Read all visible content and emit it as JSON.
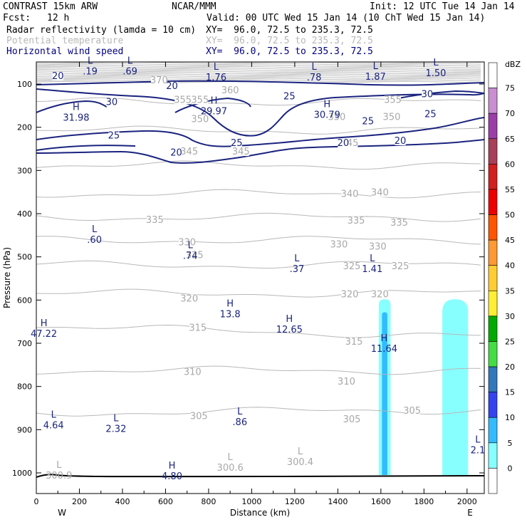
{
  "header": {
    "model": "CONTRAST 15km ARW",
    "center": "NCAR/MMM",
    "init": "Init: 12 UTC Tue 14 Jan 14",
    "fcst_label": "Fcst:",
    "fcst_value": "12 h",
    "valid": "Valid: 00 UTC Wed 15 Jan 14 (10 ChT Wed 15 Jan 14)",
    "fields": [
      {
        "name": "Radar reflectivity (lamda = 10 cm)",
        "xy": "XY=  96.0, 72.5 to 235.3, 72.5",
        "color": "#000000"
      },
      {
        "name": "Potential temperature",
        "xy": "XY=  96.0, 72.5 to 235.3, 72.5",
        "color": "#b8b8b8"
      },
      {
        "name": "Horizontal wind speed",
        "xy": "XY=  96.0, 72.5 to 235.3, 72.5",
        "color": "#000080"
      }
    ]
  },
  "chart_data": {
    "type": "cross-section",
    "xlabel": "Distance (km)",
    "ylabel": "Pressure (hPa)",
    "xlim": [
      0,
      2080
    ],
    "ylim_pressure": [
      1050,
      60
    ],
    "x_ticks": [
      "0",
      "200",
      "400",
      "600",
      "800",
      "1000",
      "1200",
      "1400",
      "1600",
      "1800",
      "2000"
    ],
    "y_ticks": [
      "100",
      "200",
      "300",
      "400",
      "500",
      "600",
      "700",
      "800",
      "900",
      "1000"
    ],
    "x_end_labels": {
      "left": "W",
      "right": "E"
    },
    "colorbar": {
      "unit": "dBZ",
      "levels": [
        "75",
        "70",
        "65",
        "60",
        "55",
        "50",
        "45",
        "40",
        "35",
        "30",
        "25",
        "20",
        "15",
        "10",
        "5",
        "0"
      ],
      "colors": [
        "#ffffff",
        "#c98fd0",
        "#9a3fa8",
        "#a8405a",
        "#d02020",
        "#ee0000",
        "#ff5500",
        "#ff9933",
        "#ffcc33",
        "#ffee33",
        "#00aa00",
        "#44dd44",
        "#3377bb",
        "#3344ee",
        "#33bbff",
        "#88ffff",
        "#ffffff"
      ]
    },
    "theta_contours": [
      "370",
      "360",
      "355",
      "350",
      "345",
      "340",
      "335",
      "330",
      "325",
      "320",
      "315",
      "310",
      "305"
    ],
    "wind_contours": [
      "20",
      "25",
      "30"
    ],
    "theta_line_labels": [
      {
        "label": "370",
        "x": 570,
        "p": 95
      },
      {
        "label": "360",
        "x": 900,
        "p": 118
      },
      {
        "label": "355",
        "x": 680,
        "p": 140
      },
      {
        "label": "355",
        "x": 760,
        "p": 140
      },
      {
        "label": "355",
        "x": 1655,
        "p": 140
      },
      {
        "label": "350",
        "x": 760,
        "p": 185
      },
      {
        "label": "350",
        "x": 1395,
        "p": 180
      },
      {
        "label": "350",
        "x": 1650,
        "p": 180
      },
      {
        "label": "345",
        "x": 710,
        "p": 260
      },
      {
        "label": "345",
        "x": 950,
        "p": 260
      },
      {
        "label": "345",
        "x": 1455,
        "p": 240
      },
      {
        "label": "340",
        "x": 1455,
        "p": 358
      },
      {
        "label": "340",
        "x": 1595,
        "p": 355
      },
      {
        "label": "335",
        "x": 550,
        "p": 418
      },
      {
        "label": "335",
        "x": 1485,
        "p": 420
      },
      {
        "label": "335",
        "x": 1685,
        "p": 425
      },
      {
        "label": "330",
        "x": 700,
        "p": 470
      },
      {
        "label": "330",
        "x": 1405,
        "p": 475
      },
      {
        "label": "330",
        "x": 1585,
        "p": 480
      },
      {
        "label": "325",
        "x": 735,
        "p": 500
      },
      {
        "label": "325",
        "x": 1465,
        "p": 525
      },
      {
        "label": "325",
        "x": 1690,
        "p": 525
      },
      {
        "label": "320",
        "x": 710,
        "p": 600
      },
      {
        "label": "320",
        "x": 1455,
        "p": 590
      },
      {
        "label": "320",
        "x": 1595,
        "p": 590
      },
      {
        "label": "315",
        "x": 750,
        "p": 668
      },
      {
        "label": "315",
        "x": 1475,
        "p": 700
      },
      {
        "label": "310",
        "x": 725,
        "p": 770
      },
      {
        "label": "310",
        "x": 1440,
        "p": 792
      },
      {
        "label": "305",
        "x": 755,
        "p": 872
      },
      {
        "label": "305",
        "x": 1465,
        "p": 880
      },
      {
        "label": "305",
        "x": 1745,
        "p": 860
      }
    ],
    "wind_line_labels": [
      {
        "label": "20",
        "x": 100,
        "p": 85
      },
      {
        "label": "20",
        "x": 630,
        "p": 108
      },
      {
        "label": "25",
        "x": 1175,
        "p": 132
      },
      {
        "label": "30",
        "x": 1815,
        "p": 127
      },
      {
        "label": "30",
        "x": 350,
        "p": 145
      },
      {
        "label": "25",
        "x": 1830,
        "p": 173
      },
      {
        "label": "25",
        "x": 1540,
        "p": 190
      },
      {
        "label": "25",
        "x": 360,
        "p": 223
      },
      {
        "label": "25",
        "x": 930,
        "p": 240
      },
      {
        "label": "20",
        "x": 1425,
        "p": 240
      },
      {
        "label": "20",
        "x": 1690,
        "p": 235
      },
      {
        "label": "20",
        "x": 650,
        "p": 262
      }
    ],
    "wind_extrema": [
      {
        "type": "L",
        "value": ".19",
        "x": 250,
        "p": 68
      },
      {
        "type": "L",
        "value": ".69",
        "x": 435,
        "p": 68
      },
      {
        "type": "L",
        "value": "1.76",
        "x": 835,
        "p": 82
      },
      {
        "type": "L",
        "value": ".78",
        "x": 1290,
        "p": 82
      },
      {
        "type": "L",
        "value": "1.87",
        "x": 1575,
        "p": 80
      },
      {
        "type": "L",
        "value": "1.50",
        "x": 1855,
        "p": 72
      },
      {
        "type": "H",
        "value": "31.98",
        "x": 185,
        "p": 175
      },
      {
        "type": "H",
        "value": "29.97",
        "x": 825,
        "p": 160
      },
      {
        "type": "H",
        "value": "30.79",
        "x": 1350,
        "p": 168
      },
      {
        "type": "L",
        "value": ".60",
        "x": 270,
        "p": 458
      },
      {
        "type": "L",
        "value": ".74",
        "x": 715,
        "p": 495
      },
      {
        "type": "L",
        "value": ".37",
        "x": 1210,
        "p": 525
      },
      {
        "type": "L",
        "value": "1.41",
        "x": 1560,
        "p": 525
      },
      {
        "type": "H",
        "value": "13.8",
        "x": 900,
        "p": 630
      },
      {
        "type": "H",
        "value": "47.22",
        "x": 35,
        "p": 675
      },
      {
        "type": "H",
        "value": "12.65",
        "x": 1175,
        "p": 665
      },
      {
        "type": "H",
        "value": "11.64",
        "x": 1615,
        "p": 710
      },
      {
        "type": "L",
        "value": "4.64",
        "x": 80,
        "p": 887
      },
      {
        "type": "L",
        "value": "2.32",
        "x": 370,
        "p": 895
      },
      {
        "type": "L",
        "value": ".86",
        "x": 945,
        "p": 880
      },
      {
        "type": "L",
        "value": "2.1",
        "x": 2050,
        "p": 945
      },
      {
        "type": "H",
        "value": "4.80",
        "x": 630,
        "p": 1005
      }
    ],
    "theta_extrema": [
      {
        "type": "L",
        "value": "300.9",
        "x": 105,
        "p": 1003
      },
      {
        "type": "L",
        "value": "300.6",
        "x": 900,
        "p": 985
      },
      {
        "type": "L",
        "value": "300.4",
        "x": 1225,
        "p": 972
      }
    ],
    "reflectivity_cells": [
      {
        "x_range": [
          1590,
          1645
        ],
        "p_top": 598,
        "p_bottom": 1005,
        "dbz": 5
      },
      {
        "x_range": [
          1605,
          1630
        ],
        "p_top": 628,
        "p_bottom": 1005,
        "dbz": 10
      },
      {
        "x_range": [
          1885,
          2005
        ],
        "p_top": 598,
        "p_bottom": 1005,
        "dbz": 5
      }
    ]
  }
}
